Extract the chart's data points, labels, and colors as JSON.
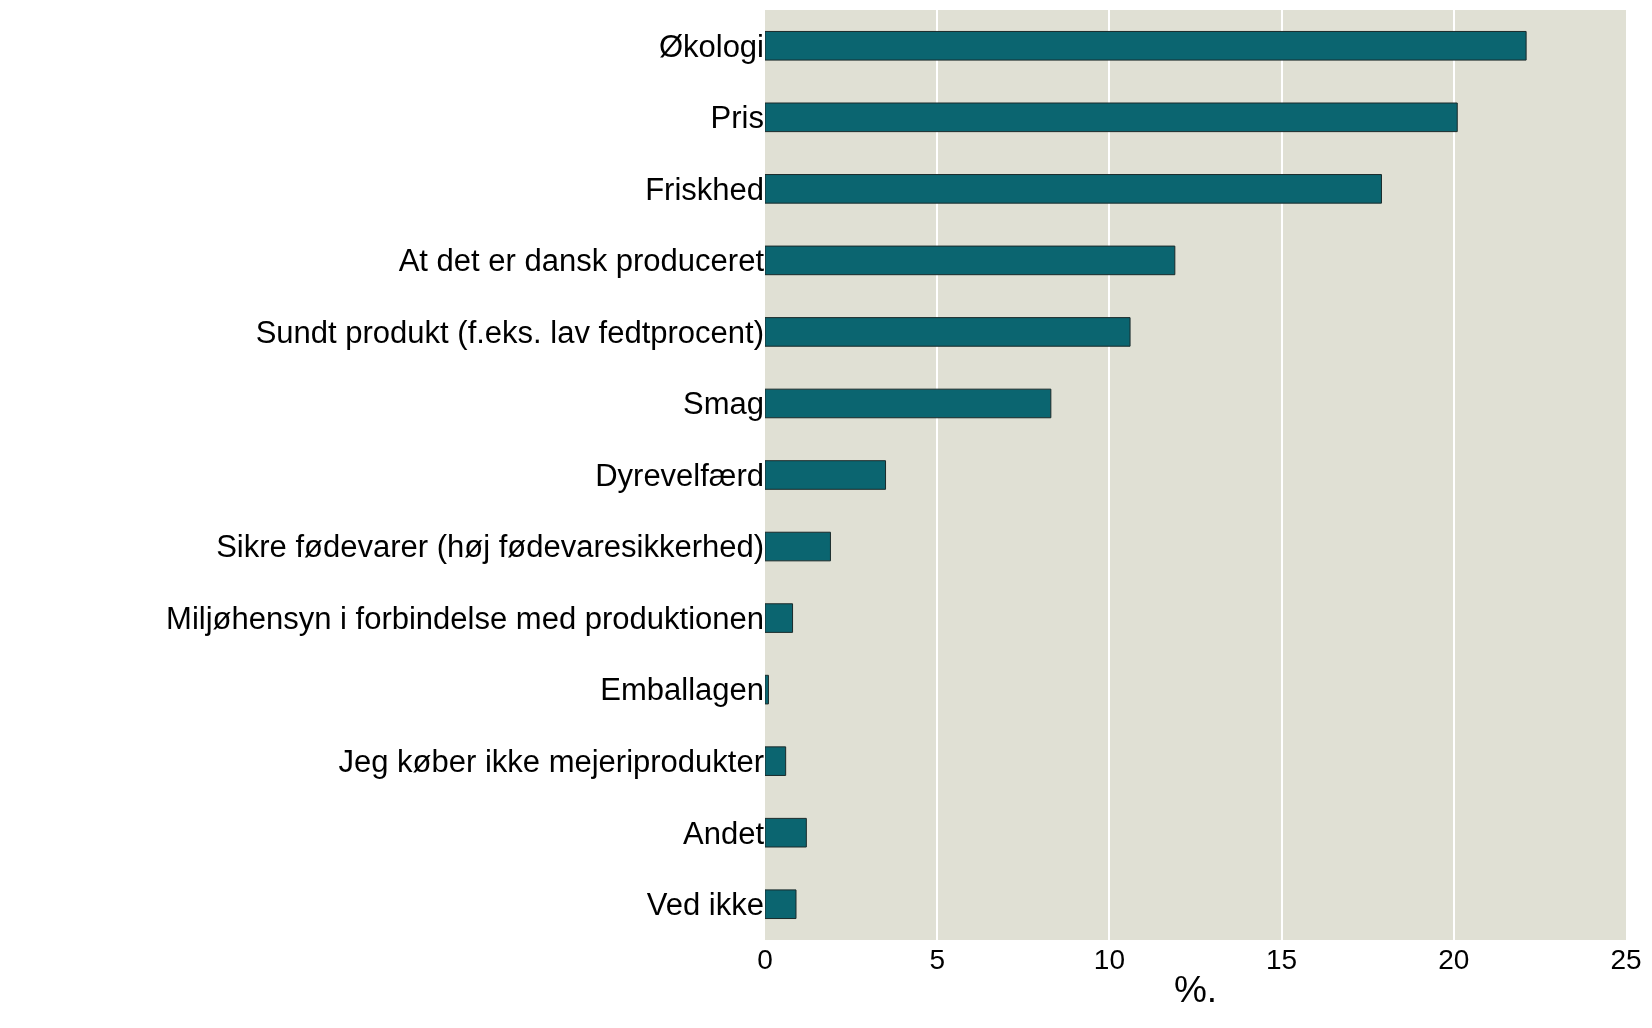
{
  "chart_data": {
    "type": "bar",
    "orientation": "horizontal",
    "xlabel": "%.",
    "categories": [
      "Økologi",
      "Pris",
      "Friskhed",
      "At det er dansk produceret",
      "Sundt produkt (f.eks. lav fedtprocent)",
      "Smag",
      "Dyrevelfærd",
      "Sikre fødevarer (høj fødevaresikkerhed)",
      "Miljøhensyn i forbindelse med produktionen",
      "Emballagen",
      "Jeg køber ikke mejeriprodukter",
      "Andet",
      "Ved ikke"
    ],
    "values": [
      22.1,
      20.1,
      17.9,
      11.9,
      10.6,
      8.3,
      3.5,
      1.9,
      0.8,
      0.1,
      0.6,
      1.2,
      0.9
    ],
    "color": "#0b6570",
    "xlim": [
      0,
      25
    ],
    "xticks": [
      0,
      5,
      10,
      15,
      20,
      25
    ],
    "grid": "x"
  }
}
